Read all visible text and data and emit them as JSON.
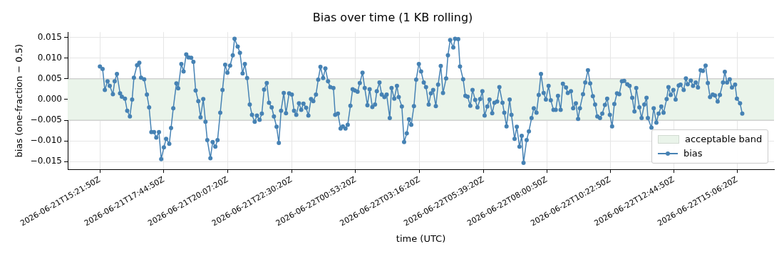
{
  "chart_data": {
    "type": "line",
    "title": "Bias over time (1 KB rolling)",
    "xlabel": "time (UTC)",
    "ylabel": "bias (one-fraction − 0.5)",
    "xlim": [
      "2026-06-21T14:10",
      "2026-06-22T16:29"
    ],
    "ylim": [
      -0.0169,
      0.0163
    ],
    "xticks": [
      {
        "value": "2026-06-21T15:21:50",
        "label": "2026-06-21T15:21:50Z"
      },
      {
        "value": "2026-06-21T17:44:50",
        "label": "2026-06-21T17:44:50Z"
      },
      {
        "value": "2026-06-21T20:07:20",
        "label": "2026-06-21T20:07:20Z"
      },
      {
        "value": "2026-06-21T22:30:20",
        "label": "2026-06-21T22:30:20Z"
      },
      {
        "value": "2026-06-22T00:53:20",
        "label": "2026-06-22T00:53:20Z"
      },
      {
        "value": "2026-06-22T03:16:20",
        "label": "2026-06-22T03:16:20Z"
      },
      {
        "value": "2026-06-22T05:39:20",
        "label": "2026-06-22T05:39:20Z"
      },
      {
        "value": "2026-06-22T08:00:50",
        "label": "2026-06-22T08:00:50Z"
      },
      {
        "value": "2026-06-22T10:22:50",
        "label": "2026-06-22T10:22:50Z"
      },
      {
        "value": "2026-06-22T12:44:50",
        "label": "2026-06-22T12:44:50Z"
      },
      {
        "value": "2026-06-22T15:06:20",
        "label": "2026-06-22T15:06:20Z"
      }
    ],
    "yticks": [
      {
        "value": -0.015,
        "label": "−0.015"
      },
      {
        "value": -0.01,
        "label": "−0.010"
      },
      {
        "value": -0.005,
        "label": "−0.005"
      },
      {
        "value": 0,
        "label": "0.000"
      },
      {
        "value": 0.005,
        "label": "0.005"
      },
      {
        "value": 0.01,
        "label": "0.010"
      },
      {
        "value": 0.015,
        "label": "0.015"
      }
    ],
    "bands": [
      {
        "axis": "y",
        "from": -0.005,
        "to": 0.005,
        "label": "acceptable band",
        "color": "#eaf4ea"
      }
    ],
    "grid": true,
    "legend": "bottom right",
    "marker": "circle",
    "line_style": "solid",
    "x": [
      "2026-06-21T15:22",
      "2026-06-21T15:28",
      "2026-06-21T15:33",
      "2026-06-21T15:39",
      "2026-06-21T15:44",
      "2026-06-21T15:51",
      "2026-06-21T15:55",
      "2026-06-21T16:00",
      "2026-06-21T16:07",
      "2026-06-21T16:11",
      "2026-06-21T16:18",
      "2026-06-21T16:23",
      "2026-06-21T16:29",
      "2026-06-21T16:34",
      "2026-06-21T16:38",
      "2026-06-21T16:45",
      "2026-06-21T16:50",
      "2026-06-21T16:54",
      "2026-06-21T17:01",
      "2026-06-21T17:07",
      "2026-06-21T17:12",
      "2026-06-21T17:17",
      "2026-06-21T17:23",
      "2026-06-21T17:28",
      "2026-06-21T17:34",
      "2026-06-21T17:39",
      "2026-06-21T17:45",
      "2026-06-21T17:50",
      "2026-06-21T17:57",
      "2026-06-21T18:01",
      "2026-06-21T18:06",
      "2026-06-21T18:13",
      "2026-06-21T18:17",
      "2026-06-21T18:24",
      "2026-06-21T18:29",
      "2026-06-21T18:35",
      "2026-06-21T18:40",
      "2026-06-21T18:46",
      "2026-06-21T18:51",
      "2026-06-21T18:56",
      "2026-06-21T19:02",
      "2026-06-21T19:07",
      "2026-06-21T19:13",
      "2026-06-21T19:18",
      "2026-06-21T19:22",
      "2026-06-21T19:29",
      "2026-06-21T19:34",
      "2026-06-21T19:40",
      "2026-06-21T19:45",
      "2026-06-21T19:51",
      "2026-06-21T19:56",
      "2026-06-21T20:02",
      "2026-06-21T20:07",
      "2026-06-21T20:13",
      "2026-06-21T20:19",
      "2026-06-21T20:23",
      "2026-06-21T20:30",
      "2026-06-21T20:35",
      "2026-06-21T20:41",
      "2026-06-21T20:46",
      "2026-06-21T20:51",
      "2026-06-21T20:57",
      "2026-06-21T21:02",
      "2026-06-21T21:08",
      "2026-06-21T21:13",
      "2026-06-21T21:19",
      "2026-06-21T21:24",
      "2026-06-21T21:29",
      "2026-06-21T21:35",
      "2026-06-21T21:40",
      "2026-06-21T21:46",
      "2026-06-21T21:51",
      "2026-06-21T21:57",
      "2026-06-21T22:02",
      "2026-06-21T22:07",
      "2026-06-21T22:13",
      "2026-06-21T22:18",
      "2026-06-21T22:25",
      "2026-06-21T22:31",
      "2026-06-21T22:36",
      "2026-06-21T22:41",
      "2026-06-21T22:47",
      "2026-06-21T22:52",
      "2026-06-21T22:57",
      "2026-06-21T23:03",
      "2026-06-21T23:08",
      "2026-06-21T23:14",
      "2026-06-21T23:19",
      "2026-06-21T23:25",
      "2026-06-21T23:30",
      "2026-06-21T23:35",
      "2026-06-21T23:41",
      "2026-06-21T23:46",
      "2026-06-21T23:52",
      "2026-06-21T23:57",
      "2026-06-22T00:04",
      "2026-06-22T00:08",
      "2026-06-22T00:14",
      "2026-06-22T00:20",
      "2026-06-22T00:25",
      "2026-06-22T00:31",
      "2026-06-22T00:36",
      "2026-06-22T00:42",
      "2026-06-22T00:47",
      "2026-06-22T00:52",
      "2026-06-22T00:58",
      "2026-06-22T01:03",
      "2026-06-22T01:09",
      "2026-06-22T01:14",
      "2026-06-22T01:20",
      "2026-06-22T01:25",
      "2026-06-22T01:31",
      "2026-06-22T01:37",
      "2026-06-22T01:41",
      "2026-06-22T01:47",
      "2026-06-22T01:52",
      "2026-06-22T01:58",
      "2026-06-22T02:03",
      "2026-06-22T02:10",
      "2026-06-22T02:14",
      "2026-06-22T02:20",
      "2026-06-22T02:26",
      "2026-06-22T02:30",
      "2026-06-22T02:37",
      "2026-06-22T02:42",
      "2026-06-22T02:48",
      "2026-06-22T02:53",
      "2026-06-22T02:58",
      "2026-06-22T03:04",
      "2026-06-22T03:09",
      "2026-06-22T03:15",
      "2026-06-22T03:20",
      "2026-06-22T03:26",
      "2026-06-22T03:31",
      "2026-06-22T03:37",
      "2026-06-22T03:42",
      "2026-06-22T03:47",
      "2026-06-22T03:53",
      "2026-06-22T03:58",
      "2026-06-22T04:04",
      "2026-06-22T04:09",
      "2026-06-22T04:16",
      "2026-06-22T04:20",
      "2026-06-22T04:25",
      "2026-06-22T04:32",
      "2026-06-22T04:36",
      "2026-06-22T04:43",
      "2026-06-22T04:47",
      "2026-06-22T04:54",
      "2026-06-22T04:59",
      "2026-06-22T05:04",
      "2026-06-22T05:10",
      "2026-06-22T05:15",
      "2026-06-22T05:21",
      "2026-06-22T05:26",
      "2026-06-22T05:32",
      "2026-06-22T05:37",
      "2026-06-22T05:42",
      "2026-06-22T05:48",
      "2026-06-22T05:53",
      "2026-06-22T05:59",
      "2026-06-22T06:04",
      "2026-06-22T06:10",
      "2026-06-22T06:15",
      "2026-06-22T06:22",
      "2026-06-22T06:26",
      "2026-06-22T06:31",
      "2026-06-22T06:38",
      "2026-06-22T06:42",
      "2026-06-22T06:49",
      "2026-06-22T06:54",
      "2026-06-22T07:00",
      "2026-06-22T07:05",
      "2026-06-22T07:09",
      "2026-06-22T07:16",
      "2026-06-22T07:21",
      "2026-06-22T07:27",
      "2026-06-22T07:32",
      "2026-06-22T07:38",
      "2026-06-22T07:43",
      "2026-06-22T07:48",
      "2026-06-22T07:54",
      "2026-06-22T07:59",
      "2026-06-22T08:05",
      "2026-06-22T08:10",
      "2026-06-22T08:16",
      "2026-06-22T08:21",
      "2026-06-22T08:26",
      "2026-06-22T08:32",
      "2026-06-22T08:37",
      "2026-06-22T08:44",
      "2026-06-22T08:48",
      "2026-06-22T08:55",
      "2026-06-22T09:00",
      "2026-06-22T09:06",
      "2026-06-22T09:11",
      "2026-06-22T09:15",
      "2026-06-22T09:22",
      "2026-06-22T09:27",
      "2026-06-22T09:33",
      "2026-06-22T09:38",
      "2026-06-22T09:44",
      "2026-06-22T09:49",
      "2026-06-22T09:54",
      "2026-06-22T10:00",
      "2026-06-22T10:05",
      "2026-06-22T10:11",
      "2026-06-22T10:16",
      "2026-06-22T10:22",
      "2026-06-22T10:27",
      "2026-06-22T10:32",
      "2026-06-22T10:38",
      "2026-06-22T10:43",
      "2026-06-22T10:49",
      "2026-06-22T10:54",
      "2026-06-22T11:01",
      "2026-06-22T11:06",
      "2026-06-22T11:12",
      "2026-06-22T11:17",
      "2026-06-22T11:21",
      "2026-06-22T11:28",
      "2026-06-22T11:33",
      "2026-06-22T11:39",
      "2026-06-22T11:44",
      "2026-06-22T11:47",
      "2026-06-22T11:55",
      "2026-06-22T12:00",
      "2026-06-22T12:06",
      "2026-06-22T12:11",
      "2026-06-22T12:17",
      "2026-06-22T12:22",
      "2026-06-22T12:29",
      "2026-06-22T12:33",
      "2026-06-22T12:38",
      "2026-06-22T12:44",
      "2026-06-22T12:49",
      "2026-06-22T12:56",
      "2026-06-22T13:00",
      "2026-06-22T13:07",
      "2026-06-22T13:12",
      "2026-06-22T13:16",
      "2026-06-22T13:23",
      "2026-06-22T13:28",
      "2026-06-22T13:34",
      "2026-06-22T13:39",
      "2026-06-22T13:45",
      "2026-06-22T13:50",
      "2026-06-22T13:56",
      "2026-06-22T14:01",
      "2026-06-22T14:06",
      "2026-06-22T14:12",
      "2026-06-22T14:17",
      "2026-06-22T14:23",
      "2026-06-22T14:28",
      "2026-06-22T14:35",
      "2026-06-22T14:39",
      "2026-06-22T14:44",
      "2026-06-22T14:50",
      "2026-06-22T14:55",
      "2026-06-22T15:02",
      "2026-06-22T15:06",
      "2026-06-22T15:13",
      "2026-06-22T15:18"
    ],
    "series": [
      {
        "name": "bias",
        "color": "#4682b4",
        "values": [
          0.008,
          0.0074,
          0.0023,
          0.0044,
          0.0033,
          0.0013,
          0.0044,
          0.0062,
          0.0015,
          0.0007,
          0.0002,
          -0.0027,
          -0.0041,
          0.0,
          0.0053,
          0.0083,
          0.0089,
          0.0053,
          0.0049,
          0.0012,
          -0.0019,
          -0.0079,
          -0.0079,
          -0.0092,
          -0.0079,
          -0.0144,
          -0.0116,
          -0.0095,
          -0.0107,
          -0.0069,
          -0.0021,
          0.0039,
          0.0027,
          0.0086,
          0.0068,
          0.0109,
          0.0102,
          0.0101,
          0.0091,
          0.0022,
          -0.0004,
          -0.0043,
          0.0001,
          -0.0054,
          -0.0098,
          -0.0142,
          -0.0103,
          -0.0114,
          -0.0098,
          -0.0032,
          0.0023,
          0.0084,
          0.0065,
          0.0082,
          0.0107,
          0.0147,
          0.0128,
          0.0113,
          0.0063,
          0.0086,
          0.0052,
          -0.0012,
          -0.0037,
          -0.0054,
          -0.0039,
          -0.0049,
          -0.0034,
          0.0024,
          0.004,
          -0.0008,
          -0.0019,
          -0.0041,
          -0.0066,
          -0.0105,
          -0.0027,
          0.0016,
          -0.0033,
          0.0015,
          0.0012,
          -0.0027,
          -0.0037,
          -0.0009,
          -0.0025,
          -0.001,
          -0.002,
          -0.0039,
          0.0001,
          -0.0004,
          0.0012,
          0.0048,
          0.0079,
          0.0052,
          0.0075,
          0.0044,
          0.003,
          0.0028,
          -0.0037,
          -0.0034,
          -0.007,
          -0.0065,
          -0.007,
          -0.0061,
          -0.0015,
          0.0025,
          0.0022,
          0.0019,
          0.004,
          0.0065,
          0.0028,
          -0.0014,
          0.0025,
          -0.0018,
          -0.0012,
          0.002,
          0.0041,
          0.0012,
          0.0006,
          0.0012,
          -0.0045,
          0.0028,
          0.0002,
          0.0033,
          0.0006,
          -0.0017,
          -0.0103,
          -0.0082,
          -0.0048,
          -0.0061,
          -0.0016,
          0.0048,
          0.0086,
          0.0068,
          0.0041,
          0.003,
          -0.0012,
          0.0015,
          0.0023,
          -0.0016,
          0.0036,
          0.0081,
          0.0016,
          0.0051,
          0.0107,
          0.0144,
          0.0126,
          0.0147,
          0.0146,
          0.008,
          0.0049,
          0.0009,
          0.0007,
          -0.0015,
          0.0023,
          -0.0001,
          -0.0019,
          0.0001,
          0.002,
          -0.0039,
          -0.0017,
          0.0,
          -0.0033,
          -0.0008,
          -0.0005,
          0.003,
          -0.0008,
          -0.0032,
          -0.0065,
          0.0,
          -0.0037,
          -0.0095,
          -0.0066,
          -0.0114,
          -0.0088,
          -0.0153,
          -0.0098,
          -0.0077,
          -0.0045,
          -0.0021,
          -0.0032,
          0.0011,
          0.0062,
          0.0016,
          0.0,
          0.0033,
          -0.0002,
          -0.0025,
          -0.0025,
          0.0009,
          -0.0025,
          0.0038,
          0.0029,
          0.0016,
          0.002,
          -0.0021,
          -0.0009,
          -0.0047,
          -0.0021,
          0.0013,
          0.0041,
          0.0071,
          0.0039,
          0.0008,
          -0.0012,
          -0.0041,
          -0.0045,
          -0.0034,
          -0.0013,
          0.0002,
          -0.0037,
          -0.0065,
          -0.0011,
          0.0015,
          0.0013,
          0.0044,
          0.0045,
          0.0037,
          0.0033,
          0.0004,
          -0.0029,
          0.0028,
          -0.0019,
          -0.0045,
          -0.0012,
          0.0004,
          -0.0045,
          -0.0068,
          -0.0021,
          -0.0056,
          -0.0034,
          -0.0017,
          -0.0032,
          0.0001,
          0.003,
          0.0011,
          0.0023,
          0.0,
          0.0034,
          0.0036,
          0.0023,
          0.0051,
          0.0037,
          0.0046,
          0.0033,
          0.0041,
          0.0029,
          0.0071,
          0.0069,
          0.0082,
          0.004,
          0.0006,
          0.0012,
          0.001,
          -0.0005,
          0.0011,
          0.0041,
          0.0067,
          0.0041,
          0.0049,
          0.0029,
          0.0036,
          0.0002,
          -0.0009,
          -0.0034
        ]
      }
    ]
  }
}
